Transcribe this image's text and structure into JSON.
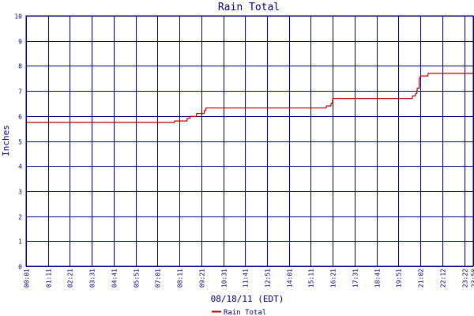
{
  "chart_data": {
    "type": "line",
    "title": "Rain Total",
    "ylabel": "Inches",
    "xlabel": "08/18/11 (EDT)",
    "ylim": [
      0,
      10
    ],
    "yticks": [
      0,
      1,
      2,
      3,
      4,
      5,
      6,
      7,
      8,
      9,
      10
    ],
    "xlim": [
      "00:01",
      "23:50"
    ],
    "xticks": [
      "00:01",
      "01:11",
      "02:21",
      "03:31",
      "04:41",
      "05:51",
      "07:01",
      "08:11",
      "09:21",
      "10:31",
      "11:41",
      "12:51",
      "14:01",
      "15:11",
      "16:21",
      "17:31",
      "18:41",
      "19:51",
      "21:02",
      "22:12",
      "23:22",
      "23:50"
    ],
    "grid": true,
    "legend": "bottom-center",
    "colors": {
      "series": "#b30000",
      "grid": "#000080",
      "text": "#000080"
    },
    "series": [
      {
        "name": "Rain Total",
        "points": [
          [
            "00:01",
            5.74
          ],
          [
            "07:55",
            5.74
          ],
          [
            "07:56",
            5.8
          ],
          [
            "08:35",
            5.8
          ],
          [
            "08:36",
            5.91
          ],
          [
            "08:45",
            5.91
          ],
          [
            "08:46",
            5.98
          ],
          [
            "09:05",
            5.98
          ],
          [
            "09:06",
            6.1
          ],
          [
            "09:30",
            6.1
          ],
          [
            "09:31",
            6.22
          ],
          [
            "09:35",
            6.22
          ],
          [
            "09:36",
            6.32
          ],
          [
            "16:00",
            6.32
          ],
          [
            "16:01",
            6.4
          ],
          [
            "16:15",
            6.4
          ],
          [
            "16:16",
            6.5
          ],
          [
            "16:20",
            6.5
          ],
          [
            "16:21",
            6.7
          ],
          [
            "20:35",
            6.7
          ],
          [
            "20:36",
            6.8
          ],
          [
            "20:45",
            6.8
          ],
          [
            "20:46",
            6.9
          ],
          [
            "20:50",
            6.9
          ],
          [
            "20:51",
            7.1
          ],
          [
            "20:57",
            7.1
          ],
          [
            "20:58",
            7.5
          ],
          [
            "21:02",
            7.6
          ],
          [
            "21:25",
            7.6
          ],
          [
            "21:26",
            7.7
          ],
          [
            "23:50",
            7.7
          ]
        ]
      }
    ]
  }
}
